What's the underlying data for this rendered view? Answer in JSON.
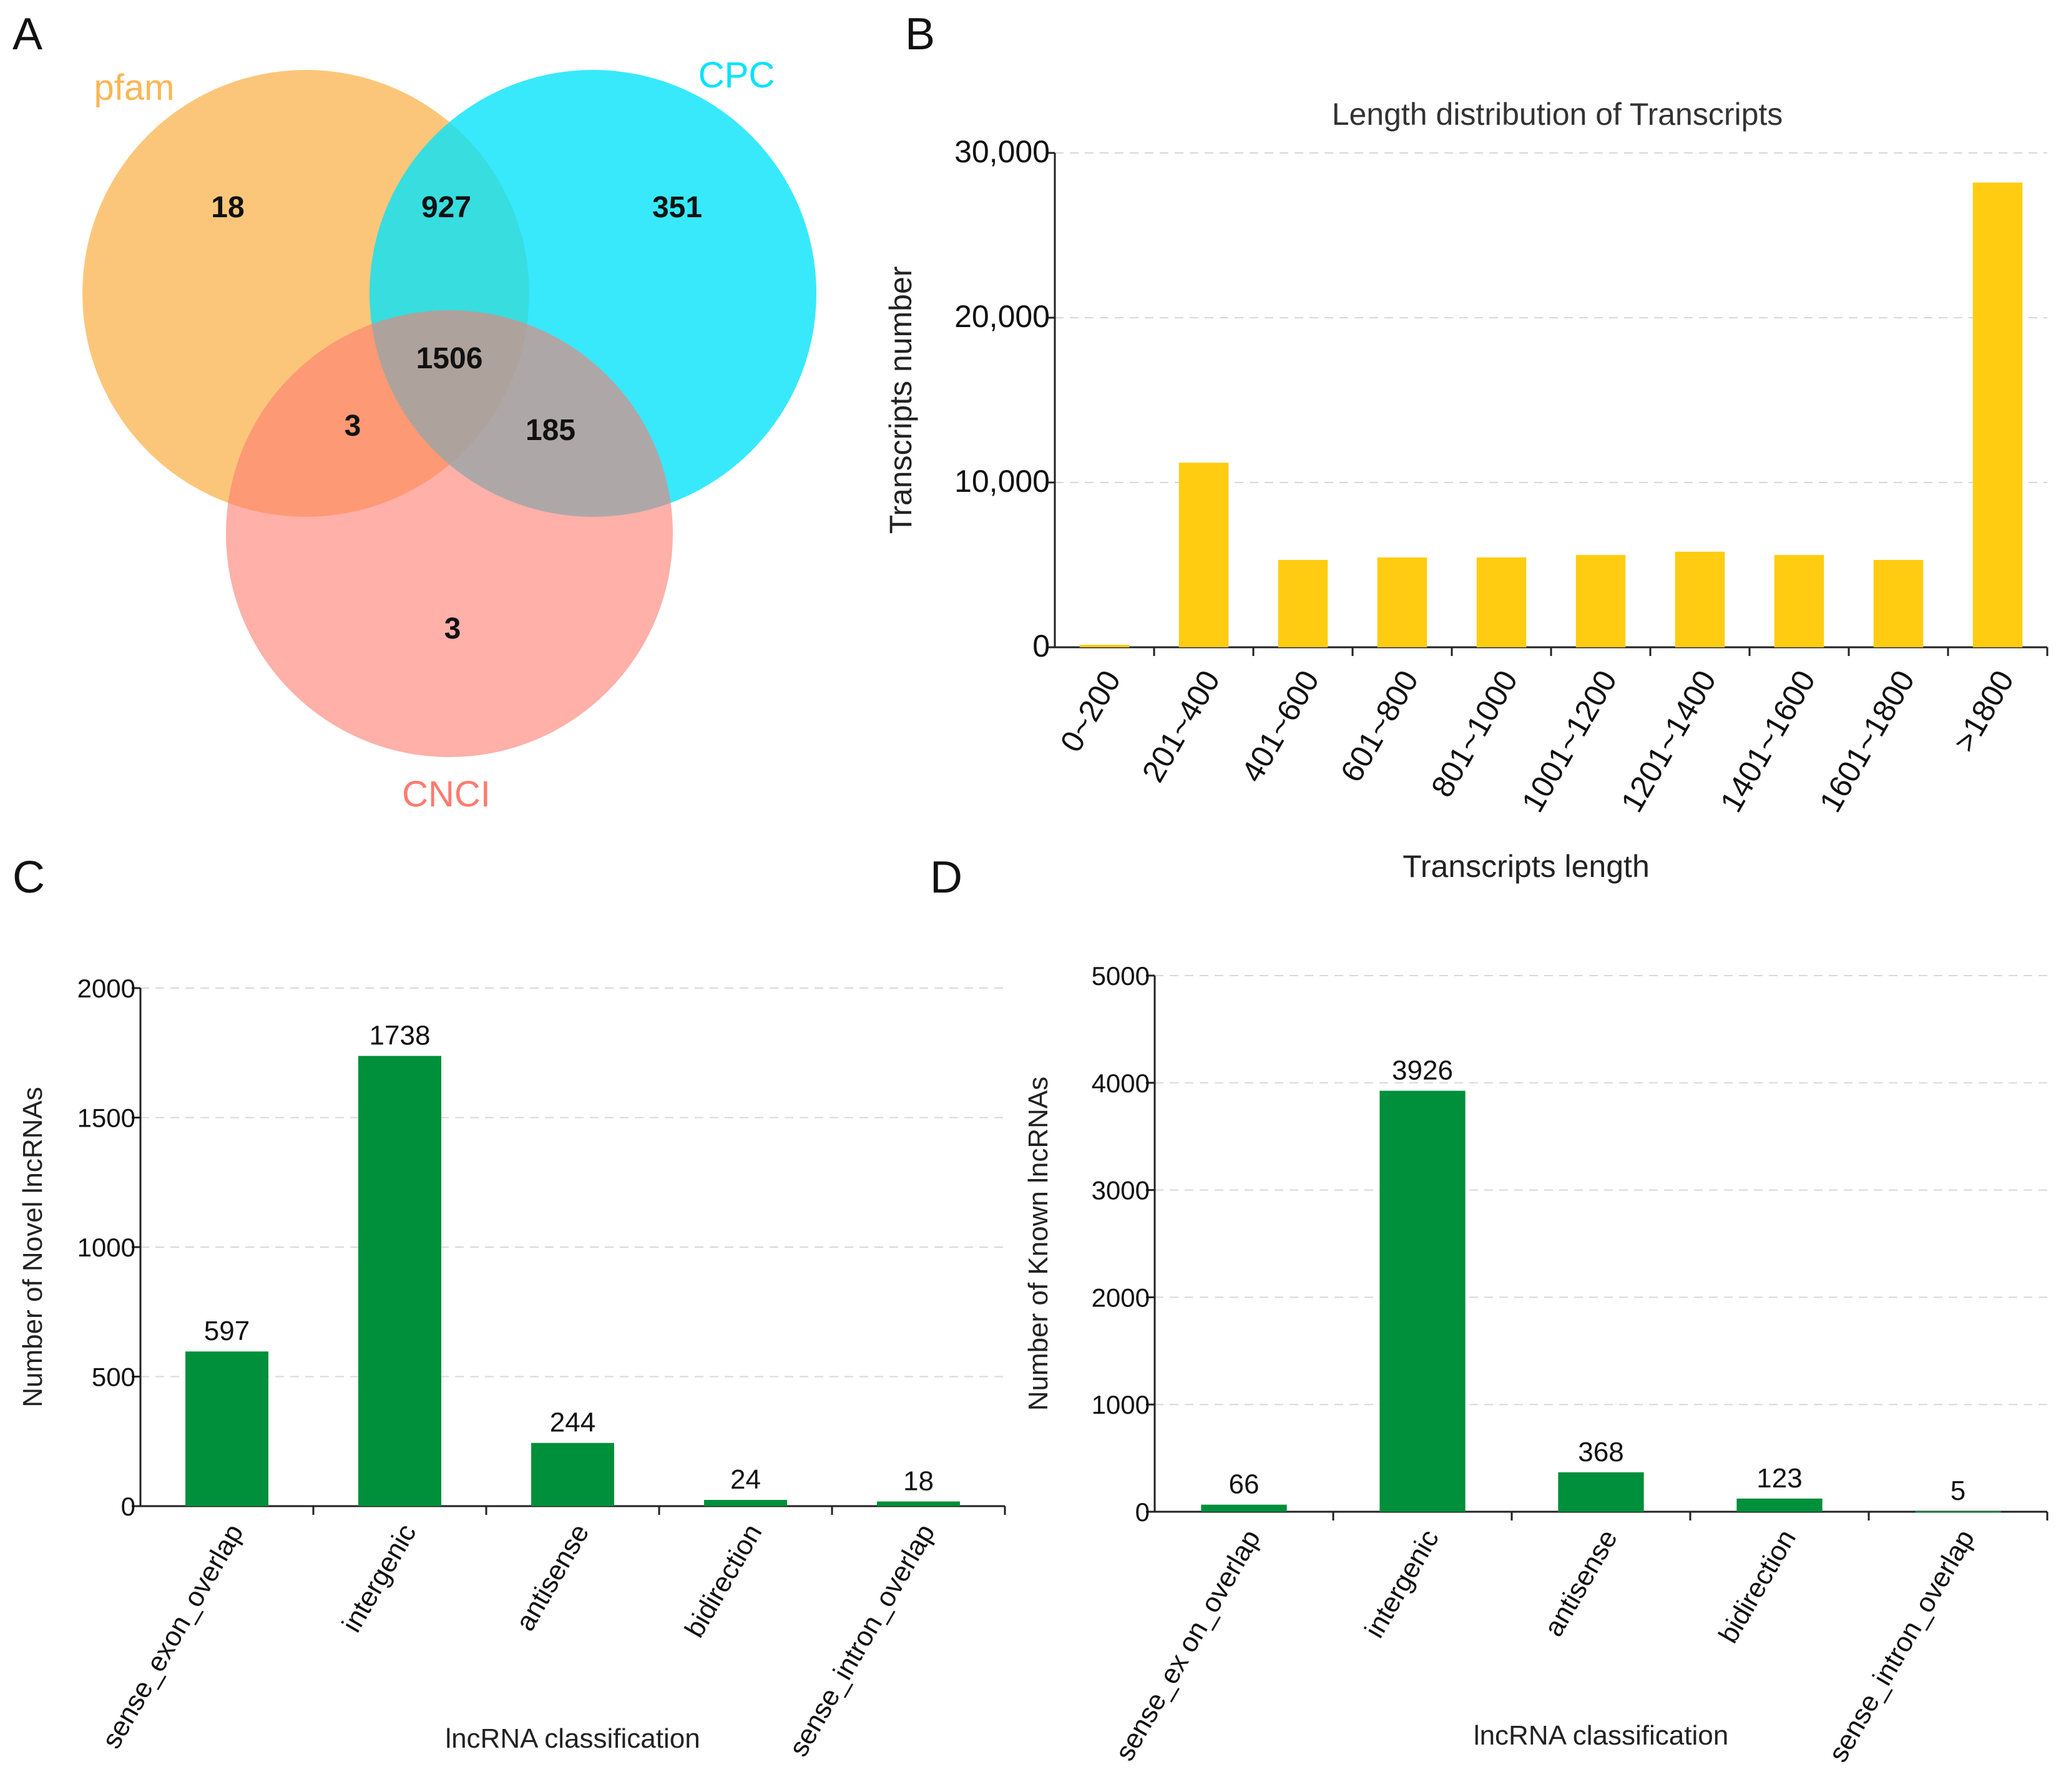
{
  "panels": {
    "A": "A",
    "B": "B",
    "C": "C",
    "D": "D"
  },
  "colors": {
    "pfam": "#fbb654",
    "cpc": "#00e3fb",
    "cnci": "#fd7b70",
    "bar_yellow": "#ffcc11",
    "bar_green": "#008f3a"
  },
  "venn": {
    "sets": {
      "pfam": "pfam",
      "cpc": "CPC",
      "cnci": "CNCI"
    },
    "regions": {
      "pfam_only": "18",
      "pfam_cpc": "927",
      "cpc_only": "351",
      "all_three": "1506",
      "pfam_cnci": "3",
      "cpc_cnci": "185",
      "cnci_only": "3"
    }
  },
  "chart_data": [
    {
      "type": "bar",
      "panel": "B",
      "title": "Length distribution of Transcripts",
      "xlabel": "Transcripts length",
      "ylabel": "Transcripts number",
      "categories": [
        "0~200",
        "201~400",
        "401~600",
        "601~800",
        "801~1000",
        "1001~1200",
        "1201~1400",
        "1401~1600",
        "1601~1800",
        ">1800"
      ],
      "values": [
        150,
        11200,
        5300,
        5450,
        5450,
        5600,
        5800,
        5600,
        5300,
        28200
      ],
      "ylim": [
        0,
        30000
      ],
      "yticks": [
        0,
        10000,
        20000,
        30000
      ],
      "ytick_labels": [
        "0",
        "10,000",
        "20,000",
        "30,000"
      ],
      "grid": true
    },
    {
      "type": "bar",
      "panel": "C",
      "title": "",
      "xlabel": "lncRNA classification",
      "ylabel": "Number of Novel lncRNAs",
      "categories": [
        "sense_exon_overlap",
        "intergenic",
        "antisense",
        "bidirection",
        "sense_intron_overlap"
      ],
      "values": [
        597,
        1738,
        244,
        24,
        18
      ],
      "value_labels": [
        "597",
        "1738",
        "244",
        "24",
        "18"
      ],
      "ylim": [
        0,
        2000
      ],
      "yticks": [
        0,
        500,
        1000,
        1500,
        2000
      ],
      "ytick_labels": [
        "0",
        "500",
        "1000",
        "1500",
        "2000"
      ],
      "grid": true
    },
    {
      "type": "bar",
      "panel": "D",
      "title": "",
      "xlabel": "lncRNA classification",
      "ylabel": "Number of Known lncRNAs",
      "categories": [
        "sense_ex on_overlap",
        "intergenic",
        "antisense",
        "bidirection",
        "sense_intron_overlap"
      ],
      "values": [
        66,
        3926,
        368,
        123,
        5
      ],
      "value_labels": [
        "66",
        "3926",
        "368",
        "123",
        "5"
      ],
      "ylim": [
        0,
        5000
      ],
      "yticks": [
        0,
        1000,
        2000,
        3000,
        4000,
        5000
      ],
      "ytick_labels": [
        "0",
        "1000",
        "2000",
        "3000",
        "4000",
        "5000"
      ],
      "grid": true
    }
  ]
}
